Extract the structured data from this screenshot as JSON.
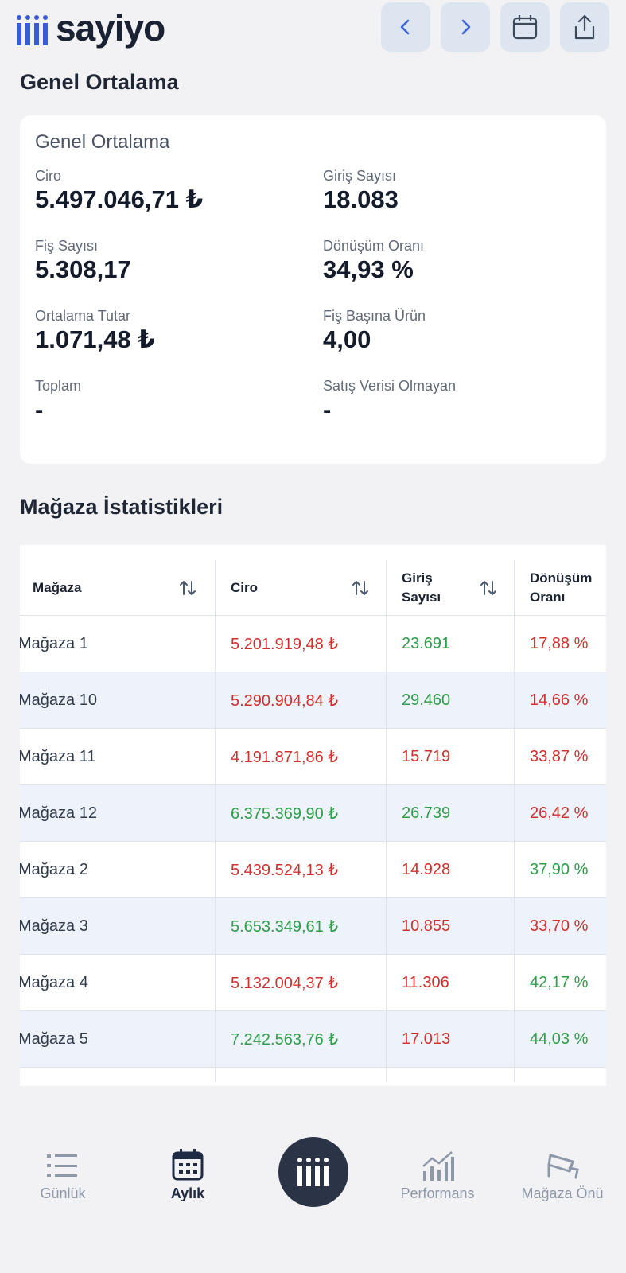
{
  "header": {
    "logo": "sayiyo"
  },
  "section_title": "Genel Ortalama",
  "summary": {
    "title": "Genel Ortalama",
    "metrics": [
      {
        "label": "Ciro",
        "value": "5.497.046,71 ₺"
      },
      {
        "label": "Giriş Sayısı",
        "value": "18.083"
      },
      {
        "label": "Fiş Sayısı",
        "value": "5.308,17"
      },
      {
        "label": "Dönüşüm Oranı",
        "value": "34,93 %"
      },
      {
        "label": "Ortalama Tutar",
        "value": "1.071,48 ₺"
      },
      {
        "label": "Fiş Başına Ürün",
        "value": "4,00"
      },
      {
        "label": "Toplam",
        "value": "-"
      },
      {
        "label": "Satış Verisi Olmayan",
        "value": "-"
      }
    ]
  },
  "table": {
    "title": "Mağaza İstatistikleri",
    "columns": [
      "Mağaza",
      "Ciro",
      "Giriş Sayısı",
      "Dönüşüm Oranı"
    ],
    "sortable": [
      true,
      true,
      true,
      false
    ],
    "rows": [
      [
        "Mağaza 1",
        "5.201.919,48 ₺",
        "23.691",
        "17,88 %"
      ],
      [
        "Mağaza 10",
        "5.290.904,84 ₺",
        "29.460",
        "14,66 %"
      ],
      [
        "Mağaza 11",
        "4.191.871,86 ₺",
        "15.719",
        "33,87 %"
      ],
      [
        "Mağaza 12",
        "6.375.369,90 ₺",
        "26.739",
        "26,42 %"
      ],
      [
        "Mağaza 2",
        "5.439.524,13 ₺",
        "14.928",
        "37,90 %"
      ],
      [
        "Mağaza 3",
        "5.653.349,61 ₺",
        "10.855",
        "33,70 %"
      ],
      [
        "Mağaza 4",
        "5.132.004,37 ₺",
        "11.306",
        "42,17 %"
      ],
      [
        "Mağaza 5",
        "7.242.563,76 ₺",
        "17.013",
        "44,03 %"
      ]
    ],
    "cell_colors": [
      [
        "#d0312d",
        "#2e9e49",
        "#d0312d"
      ],
      [
        "#d0312d",
        "#2e9e49",
        "#d0312d"
      ],
      [
        "#d0312d",
        "#d0312d",
        "#d0312d"
      ],
      [
        "#2e9e49",
        "#2e9e49",
        "#d0312d"
      ],
      [
        "#d0312d",
        "#d0312d",
        "#2e9e49"
      ],
      [
        "#2e9e49",
        "#d0312d",
        "#d0312d"
      ],
      [
        "#d0312d",
        "#d0312d",
        "#2e9e49"
      ],
      [
        "#2e9e49",
        "#d0312d",
        "#2e9e49"
      ]
    ]
  },
  "nav": {
    "items": [
      "Günlük",
      "Aylık",
      "Performans",
      "Mağaza Önü"
    ],
    "active": 1
  }
}
